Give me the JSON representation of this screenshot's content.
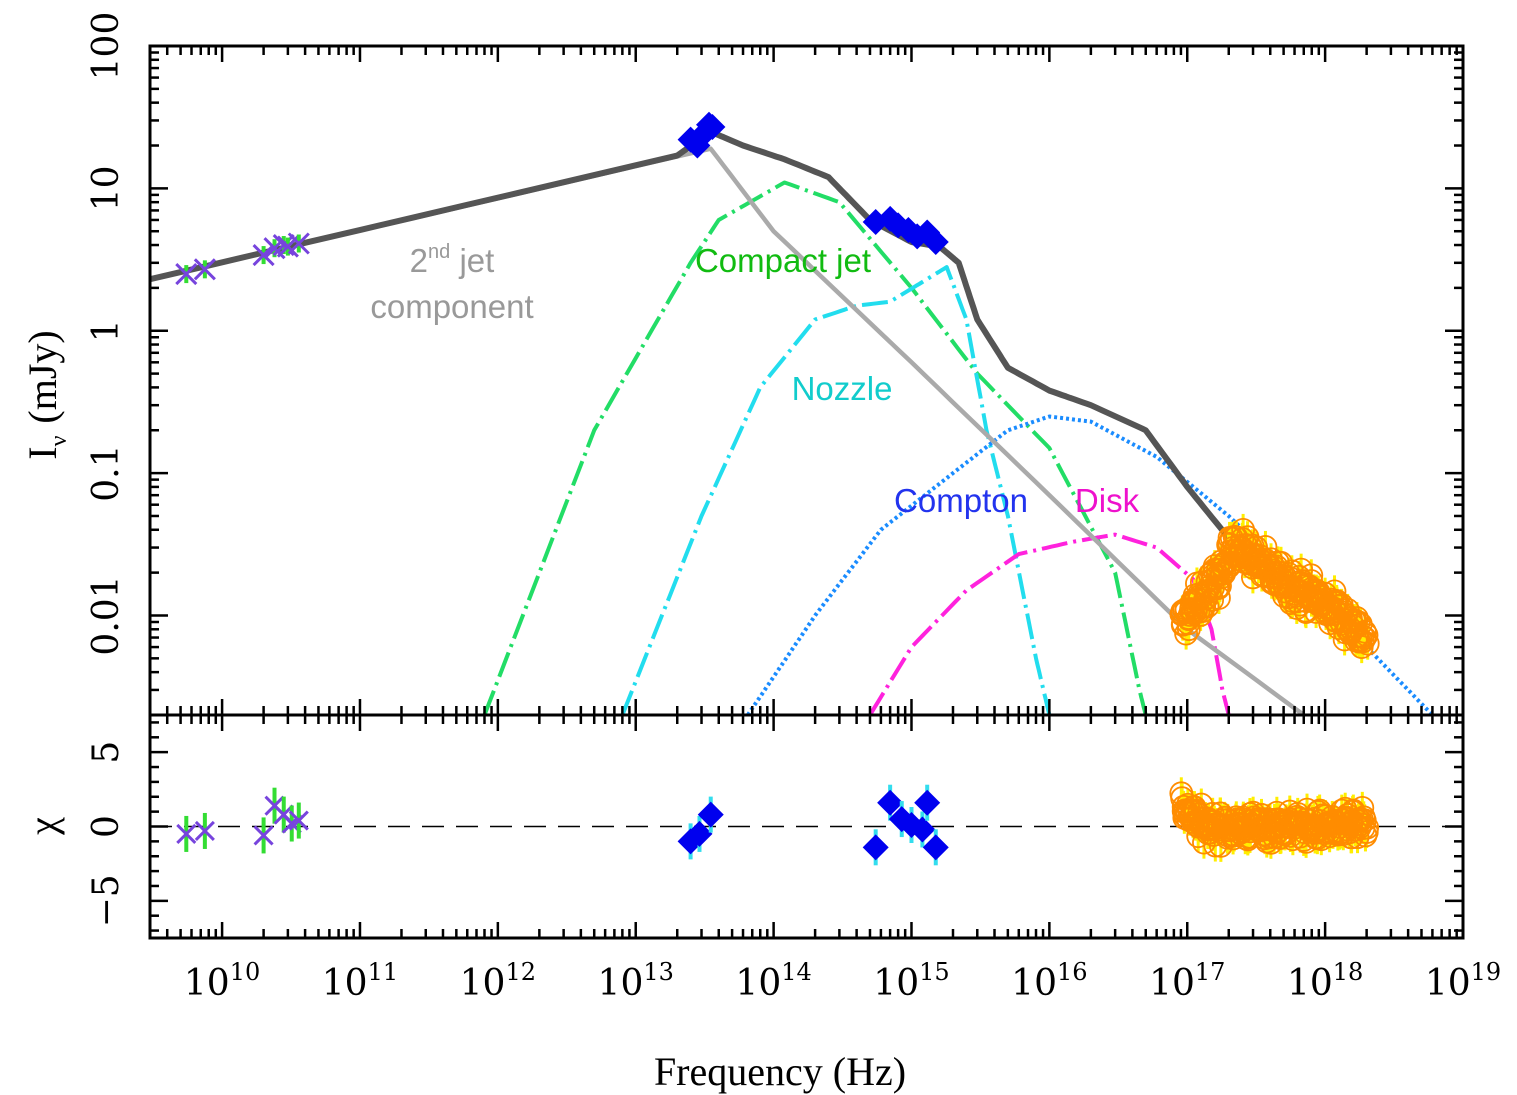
{
  "chart_data": {
    "type": "scatter",
    "xlabel": "Frequency (Hz)",
    "ylabel_top": "I",
    "ylabel_top_sub": "ν",
    "ylabel_top_unit": "(mJy)",
    "ylabel_bottom": "χ",
    "x_scale": "log",
    "xlim": [
      3000000000.0,
      1e+19
    ],
    "x_ticks": [
      {
        "value": 10000000000.0,
        "base": "10",
        "exp": "10"
      },
      {
        "value": 100000000000.0,
        "base": "10",
        "exp": "11"
      },
      {
        "value": 1000000000000.0,
        "base": "10",
        "exp": "12"
      },
      {
        "value": 10000000000000.0,
        "base": "10",
        "exp": "13"
      },
      {
        "value": 100000000000000.0,
        "base": "10",
        "exp": "14"
      },
      {
        "value": 1000000000000000.0,
        "base": "10",
        "exp": "15"
      },
      {
        "value": 1e+16,
        "base": "10",
        "exp": "16"
      },
      {
        "value": 1e+17,
        "base": "10",
        "exp": "17"
      },
      {
        "value": 1e+18,
        "base": "10",
        "exp": "18"
      },
      {
        "value": 1e+19,
        "base": "10",
        "exp": "19"
      }
    ],
    "top_panel": {
      "y_scale": "log",
      "ylim": [
        0.002,
        100
      ],
      "y_ticks": [
        {
          "value": 0.01,
          "label": "0.01"
        },
        {
          "value": 0.1,
          "label": "0.1"
        },
        {
          "value": 1,
          "label": "1"
        },
        {
          "value": 10,
          "label": "10"
        },
        {
          "value": 100,
          "label": "100"
        }
      ],
      "curves": [
        {
          "name": "Compact jet",
          "color": "#22dd66",
          "style": "dashdot",
          "points": [
            [
              800000000000.0,
              0.002
            ],
            [
              5000000000000.0,
              0.2
            ],
            [
              25000000000000.0,
              3
            ],
            [
              40000000000000.0,
              6
            ],
            [
              120000000000000.0,
              11
            ],
            [
              300000000000000.0,
              8
            ],
            [
              1000000000000000.0,
              2
            ],
            [
              3000000000000000.0,
              0.5
            ],
            [
              1e+16,
              0.15
            ],
            [
              3e+16,
              0.02
            ],
            [
              4.5e+16,
              0.003
            ],
            [
              5e+16,
              0.002
            ]
          ]
        },
        {
          "name": "Nozzle",
          "color": "#22ddee",
          "style": "dashdot",
          "points": [
            [
              8000000000000.0,
              0.002
            ],
            [
              30000000000000.0,
              0.05
            ],
            [
              80000000000000.0,
              0.4
            ],
            [
              200000000000000.0,
              1.2
            ],
            [
              400000000000000.0,
              1.5
            ],
            [
              700000000000000.0,
              1.6
            ],
            [
              1200000000000000.0,
              2.2
            ],
            [
              1800000000000000.0,
              2.8
            ],
            [
              2500000000000000.0,
              1.2
            ],
            [
              3500000000000000.0,
              0.2
            ],
            [
              5000000000000000.0,
              0.05
            ],
            [
              8000000000000000.0,
              0.005
            ],
            [
              1e+16,
              0.002
            ]
          ]
        },
        {
          "name": "Compton",
          "color": "#1a8cff",
          "style": "dotted",
          "points": [
            [
              65000000000000.0,
              0.002
            ],
            [
              200000000000000.0,
              0.01
            ],
            [
              600000000000000.0,
              0.04
            ],
            [
              2000000000000000.0,
              0.1
            ],
            [
              5000000000000000.0,
              0.2
            ],
            [
              1e+16,
              0.25
            ],
            [
              2e+16,
              0.23
            ],
            [
              6e+16,
              0.13
            ],
            [
              2e+17,
              0.05
            ],
            [
              6e+17,
              0.018
            ],
            [
              2e+18,
              0.006
            ],
            [
              4e+18,
              0.003
            ],
            [
              6e+18,
              0.002
            ]
          ]
        },
        {
          "name": "Disk",
          "color": "#ff22dd",
          "style": "dashdot",
          "points": [
            [
              500000000000000.0,
              0.002
            ],
            [
              1000000000000000.0,
              0.006
            ],
            [
              2500000000000000.0,
              0.015
            ],
            [
              6000000000000000.0,
              0.027
            ],
            [
              1.5e+16,
              0.033
            ],
            [
              3e+16,
              0.037
            ],
            [
              6e+16,
              0.03
            ],
            [
              1.1e+17,
              0.018
            ],
            [
              1.5e+17,
              0.008
            ],
            [
              1.8e+17,
              0.003
            ],
            [
              2e+17,
              0.002
            ]
          ]
        },
        {
          "name": "2nd jet component",
          "color": "#aaaaaa",
          "style": "solid",
          "points": [
            [
              3000000000.0,
              2.3
            ],
            [
              35000000000000.0,
              19
            ],
            [
              100000000000000.0,
              5
            ],
            [
              1000000000000000.0,
              0.6
            ],
            [
              1e+16,
              0.07
            ],
            [
              1e+17,
              0.008
            ],
            [
              7e+17,
              0.002
            ]
          ]
        },
        {
          "name": "Total",
          "color": "#555555",
          "style": "solid",
          "points": [
            [
              3000000000.0,
              2.3
            ],
            [
              20000000000000.0,
              17
            ],
            [
              35000000000000.0,
              25
            ],
            [
              60000000000000.0,
              20
            ],
            [
              120000000000000.0,
              16
            ],
            [
              250000000000000.0,
              12
            ],
            [
              500000000000000.0,
              6
            ],
            [
              1000000000000000.0,
              4.2
            ],
            [
              1600000000000000.0,
              3.9
            ],
            [
              2200000000000000.0,
              3
            ],
            [
              3000000000000000.0,
              1.2
            ],
            [
              5000000000000000.0,
              0.55
            ],
            [
              1e+16,
              0.38
            ],
            [
              2e+16,
              0.3
            ],
            [
              5e+16,
              0.2
            ],
            [
              1e+17,
              0.08
            ],
            [
              2e+17,
              0.035
            ],
            [
              4e+17,
              0.02
            ],
            [
              8e+17,
              0.014
            ],
            [
              1.5e+18,
              0.009
            ],
            [
              2e+18,
              0.007
            ]
          ]
        }
      ],
      "series_radio": [
        [
          5500000000.0,
          2.5
        ],
        [
          7500000000.0,
          2.7
        ],
        [
          20000000000.0,
          3.4
        ],
        [
          24000000000.0,
          3.8
        ],
        [
          28000000000.0,
          4.0
        ],
        [
          30000000000.0,
          3.9
        ],
        [
          36000000000.0,
          4.1
        ]
      ],
      "series_ir": [
        [
          25000000000000.0,
          22
        ],
        [
          28000000000000.0,
          20
        ],
        [
          31000000000000.0,
          24
        ],
        [
          34000000000000.0,
          28
        ],
        [
          36000000000000.0,
          27
        ]
      ],
      "series_uv": [
        [
          550000000000000.0,
          5.8
        ],
        [
          700000000000000.0,
          6.1
        ],
        [
          800000000000000.0,
          5.5
        ],
        [
          950000000000000.0,
          5.1
        ],
        [
          1100000000000000.0,
          4.6
        ],
        [
          1300000000000000.0,
          4.9
        ],
        [
          1500000000000000.0,
          4.2
        ]
      ],
      "series_xray_range": [
        9e+16,
        2e+18
      ],
      "annotations": [
        {
          "text": "2",
          "sup": "nd",
          "rest": " jet",
          "line2": "component",
          "color": "#999999",
          "key": "second_jet"
        },
        {
          "text": "Compact jet",
          "color": "#11bb11",
          "key": "compact"
        },
        {
          "text": "Nozzle",
          "color": "#11cccc",
          "key": "nozzle"
        },
        {
          "text": "Compton",
          "color": "#2233ee",
          "key": "compton"
        },
        {
          "text": "Disk",
          "color": "#ee11cc",
          "key": "disk"
        }
      ]
    },
    "bottom_panel": {
      "ylim": [
        -7.5,
        7.5
      ],
      "y_ticks": [
        {
          "value": 5,
          "label": "5"
        },
        {
          "value": 0,
          "label": "0"
        },
        {
          "value": -5,
          "label": "−5"
        }
      ],
      "residuals_radio": [
        [
          5500000000.0,
          -0.5
        ],
        [
          7500000000.0,
          -0.3
        ],
        [
          20000000000.0,
          -0.6
        ],
        [
          24000000000.0,
          1.4
        ],
        [
          28000000000.0,
          0.8
        ],
        [
          32000000000.0,
          0.2
        ],
        [
          36000000000.0,
          0.4
        ]
      ],
      "residuals_optical": [
        [
          25000000000000.0,
          -1.0
        ],
        [
          29000000000000.0,
          -0.5
        ],
        [
          35000000000000.0,
          0.8
        ],
        [
          550000000000000.0,
          -1.4
        ],
        [
          700000000000000.0,
          1.6
        ],
        [
          850000000000000.0,
          0.5
        ],
        [
          1000000000000000.0,
          0.1
        ],
        [
          1200000000000000.0,
          -0.2
        ],
        [
          1300000000000000.0,
          1.6
        ],
        [
          1500000000000000.0,
          -1.4
        ]
      ],
      "xray_range": [
        9e+16,
        2e+18
      ]
    },
    "colors": {
      "radio_marker": "#7744dd",
      "radio_err": "#33dd33",
      "optical_marker": "#0000ee",
      "optical_err": "#33ddee",
      "xray_marker": "#ff8c00",
      "xray_err": "#ffee00"
    }
  }
}
